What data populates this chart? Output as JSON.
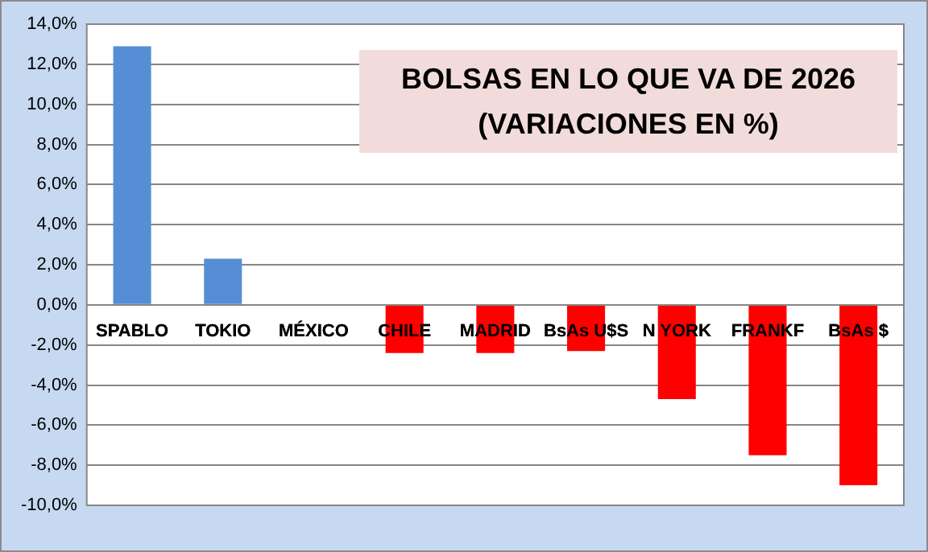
{
  "chart_data": {
    "type": "bar",
    "title": "BOLSAS EN LO QUE VA DE 2026\n(VARIACIONES EN %)",
    "categories": [
      "SPABLO",
      "TOKIO",
      "MÉXICO",
      "CHILE",
      "MADRID",
      "BsAs U$S",
      "N YORK",
      "FRANKF",
      "BsAs $"
    ],
    "values": [
      12.9,
      2.3,
      0,
      -2.4,
      -2.4,
      -2.3,
      -4.7,
      -7.5,
      -9.0
    ],
    "colors": [
      "#558ed5",
      "#558ed5",
      "#558ed5",
      "#ff0000",
      "#ff0000",
      "#ff0000",
      "#ff0000",
      "#ff0000",
      "#ff0000"
    ],
    "ylim": [
      -10,
      14
    ],
    "yticks": [
      {
        "value": -10,
        "label": "-10,0%"
      },
      {
        "value": -8,
        "label": "-8,0%"
      },
      {
        "value": -6,
        "label": "-6,0%"
      },
      {
        "value": -4,
        "label": "-4,0%"
      },
      {
        "value": -2,
        "label": "-2,0%"
      },
      {
        "value": 0,
        "label": "0,0%"
      },
      {
        "value": 2,
        "label": "2,0%"
      },
      {
        "value": 4,
        "label": "4,0%"
      },
      {
        "value": 6,
        "label": "6,0%"
      },
      {
        "value": 8,
        "label": "8,0%"
      },
      {
        "value": 10,
        "label": "10,0%"
      },
      {
        "value": 12,
        "label": "12,0%"
      },
      {
        "value": 14,
        "label": "14,0%"
      }
    ],
    "grid": "y"
  }
}
